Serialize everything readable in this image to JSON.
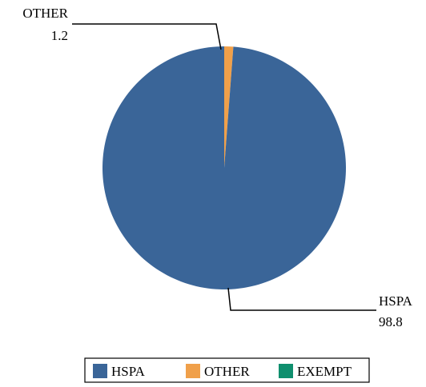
{
  "chart_data": {
    "type": "pie",
    "categories": [
      "HSPA",
      "OTHER",
      "EXEMPT"
    ],
    "values": [
      98.8,
      1.2,
      0
    ],
    "colors": [
      "#3a6598",
      "#f0a04a",
      "#0f8f6e"
    ],
    "data_labels": [
      {
        "category": "OTHER",
        "value": "1.2"
      },
      {
        "category": "HSPA",
        "value": "98.8"
      }
    ],
    "legend": {
      "placement": "bottom",
      "entries": [
        "HSPA",
        "OTHER",
        "EXEMPT"
      ]
    }
  }
}
